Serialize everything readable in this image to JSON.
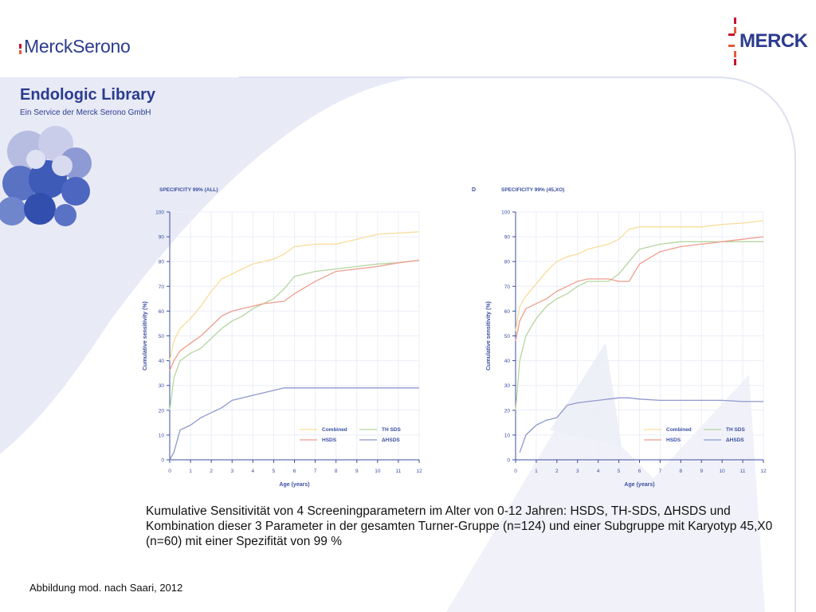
{
  "branding": {
    "left_logo_text": "MerckSerono",
    "right_logo_text": "MERCK",
    "title": "Endologic Library",
    "subtitle": "Ein Service der Merck Serono GmbH"
  },
  "caption": "Kumulative Sensitivität von 4 Screeningparametern im Alter von 0-12 Jahren: HSDS, TH-SDS, ΔHSDS und Kombination dieser 3 Parameter in der gesamten Turner-Gruppe (n=124) und einer Subgruppe mit Karyotyp 45,X0 (n=60) mit einer Spezifität von 99 %",
  "source": "Abbildung mod. nach Saari, 2012",
  "colors": {
    "brand_blue": "#2b3b8f",
    "brand_red": "#c8102e",
    "combined": "#f8dc9a",
    "th_sds": "#b5d6a0",
    "hsds": "#ee9e8e",
    "dhsds": "#8e98cc",
    "axis": "#3b4fa0"
  },
  "chart_data": [
    {
      "type": "line",
      "panel_letter": "",
      "title": "SPECIFICITY 99% (ALL)",
      "xlabel": "Age (years)",
      "ylabel": "Cumulative sensitivity (%)",
      "xlim": [
        0,
        12
      ],
      "ylim": [
        0,
        100
      ],
      "xticks": [
        0,
        1,
        2,
        3,
        4,
        5,
        6,
        7,
        8,
        9,
        10,
        11,
        12
      ],
      "yticks": [
        0,
        10,
        20,
        30,
        40,
        50,
        60,
        70,
        80,
        90,
        100
      ],
      "grid": true,
      "legend": "bottom-right",
      "series": [
        {
          "name": "Combined",
          "color": "#f8dc9a",
          "x": [
            0,
            0.2,
            0.5,
            1.0,
            1.5,
            2.0,
            2.5,
            3.0,
            3.5,
            4.0,
            4.5,
            5.0,
            5.5,
            6.0,
            7.0,
            8.0,
            9.0,
            10.0,
            11.0,
            12.0
          ],
          "y": [
            40,
            48,
            53,
            57,
            62,
            68,
            73,
            75,
            77,
            79,
            80,
            81,
            83,
            86,
            87,
            87,
            89,
            91,
            91.5,
            92
          ]
        },
        {
          "name": "TH SDS",
          "color": "#b5d6a0",
          "x": [
            0,
            0.2,
            0.5,
            1.0,
            1.5,
            2.0,
            2.5,
            3.0,
            3.5,
            4.0,
            4.5,
            5.0,
            5.5,
            6.0,
            7.0,
            8.0,
            9.0,
            10.0,
            11.0,
            12.0
          ],
          "y": [
            20,
            33,
            40,
            43,
            45,
            49,
            53,
            56,
            58,
            61,
            63,
            65,
            69,
            74,
            76,
            77,
            78,
            79,
            79.5,
            80.5
          ]
        },
        {
          "name": "HSDS",
          "color": "#ee9e8e",
          "x": [
            0,
            0.2,
            0.5,
            1.0,
            1.5,
            2.0,
            2.5,
            3.0,
            3.5,
            4.0,
            4.5,
            5.0,
            5.5,
            6.0,
            7.0,
            8.0,
            9.0,
            10.0,
            11.0,
            12.0
          ],
          "y": [
            36,
            40,
            44,
            47,
            50,
            54,
            58,
            60,
            61,
            62,
            63,
            63.5,
            64,
            67,
            72,
            76,
            77,
            78,
            79.5,
            80.5
          ]
        },
        {
          "name": "ΔHSDS",
          "color": "#8e98cc",
          "x": [
            0,
            0.2,
            0.5,
            1.0,
            1.5,
            2.0,
            2.5,
            3.0,
            3.5,
            4.0,
            4.5,
            5.0,
            5.5,
            6.0,
            7.0,
            8.0,
            9.0,
            10.0,
            11.0,
            12.0
          ],
          "y": [
            0,
            3,
            12,
            14,
            17,
            19,
            21,
            24,
            25,
            26,
            27,
            28,
            29,
            29,
            29,
            29,
            29,
            29,
            29,
            29
          ]
        }
      ]
    },
    {
      "type": "line",
      "panel_letter": "D",
      "title": "SPECIFICITY 99% (45,XO)",
      "xlabel": "Age (years)",
      "ylabel": "Cumulative sensitivity (%)",
      "xlim": [
        0,
        12
      ],
      "ylim": [
        0,
        100
      ],
      "xticks": [
        0,
        1,
        2,
        3,
        4,
        5,
        6,
        7,
        8,
        9,
        10,
        11,
        12
      ],
      "yticks": [
        0,
        10,
        20,
        30,
        40,
        50,
        60,
        70,
        80,
        90,
        100
      ],
      "grid": true,
      "legend": "bottom-right",
      "series": [
        {
          "name": "Combined",
          "color": "#f8dc9a",
          "x": [
            0,
            0.2,
            0.5,
            1.0,
            1.5,
            2.0,
            2.5,
            3.0,
            3.5,
            4.0,
            4.5,
            5.0,
            5.5,
            6.0,
            7.0,
            8.0,
            9.0,
            10.0,
            11.0,
            12.0
          ],
          "y": [
            52,
            62,
            66,
            71,
            76,
            80,
            82,
            83,
            85,
            86,
            87,
            89,
            93,
            94,
            94,
            94,
            94,
            95,
            95.5,
            96.5
          ]
        },
        {
          "name": "TH SDS",
          "color": "#b5d6a0",
          "x": [
            0,
            0.2,
            0.5,
            1.0,
            1.5,
            2.0,
            2.5,
            3.0,
            3.5,
            4.0,
            4.5,
            5.0,
            5.5,
            6.0,
            7.0,
            8.0,
            9.0,
            10.0,
            11.0,
            12.0
          ],
          "y": [
            20,
            40,
            50,
            57,
            62,
            65,
            67,
            70,
            72,
            72,
            72,
            75,
            80,
            85,
            87,
            88,
            88,
            88,
            88,
            88
          ]
        },
        {
          "name": "HSDS",
          "color": "#ee9e8e",
          "x": [
            0,
            0.2,
            0.5,
            1.0,
            1.5,
            2.0,
            2.5,
            3.0,
            3.5,
            4.0,
            4.5,
            5.0,
            5.5,
            6.0,
            7.0,
            8.0,
            9.0,
            10.0,
            11.0,
            12.0
          ],
          "y": [
            48,
            56,
            61,
            63,
            65,
            68,
            70,
            72,
            73,
            73,
            73,
            72,
            72,
            79,
            84,
            86,
            87,
            88,
            89,
            90
          ]
        },
        {
          "name": "ΔHSDS",
          "color": "#8e98cc",
          "x": [
            0.2,
            0.5,
            1.0,
            1.5,
            2.0,
            2.5,
            3.0,
            3.5,
            4.0,
            4.5,
            5.0,
            5.5,
            6.0,
            7.0,
            8.0,
            9.0,
            10.0,
            11.0,
            12.0
          ],
          "y": [
            3,
            10,
            14,
            16,
            17,
            22,
            23,
            23.5,
            24,
            24.5,
            25,
            25,
            24.5,
            24,
            24,
            24,
            24,
            23.5,
            23.5
          ]
        }
      ]
    }
  ]
}
